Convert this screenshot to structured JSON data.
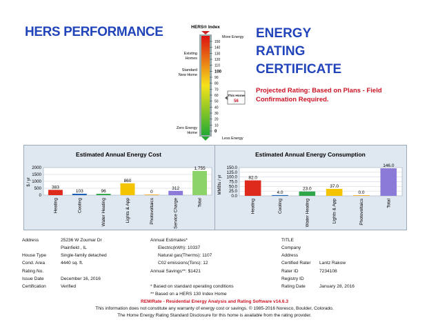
{
  "header": {
    "hers_performance": "HERS PERFORMANCE",
    "cert_line1": "ENERGY",
    "cert_line2": "RATING",
    "cert_line3": "CERTIFICATE",
    "projected": "Projected Rating: Based on Plans - Field Confirmation Required."
  },
  "index": {
    "title": "HERS® Index",
    "more_energy": "More Energy",
    "less_energy": "Less Energy",
    "existing_line1": "Existing",
    "existing_line2": "Homes",
    "standard_line1": "Standard",
    "standard_line2": "New Home",
    "zero_line1": "Zero Energy",
    "zero_line2": "Home",
    "this_home_label": "This Home",
    "this_home_value": "56",
    "ticks": [
      "150",
      "140",
      "130",
      "120",
      "110",
      "100",
      "90",
      "80",
      "70",
      "60",
      "50",
      "40",
      "30",
      "20",
      "10",
      "0"
    ],
    "colors": {
      "high": "#dd1111",
      "mid": "#f5e21a",
      "low": "#22aa33"
    }
  },
  "chart_data": [
    {
      "type": "bar",
      "title": "Estimated Annual Energy Cost",
      "ylabel": "$ / yr",
      "ylim": [
        0,
        2000
      ],
      "yticks": [
        "0",
        "500",
        "1000",
        "1500",
        "2000"
      ],
      "categories": [
        "Heating",
        "Cooling",
        "Water Heating",
        "Lights & App",
        "Photovoltaics",
        "Service Charge",
        "Total"
      ],
      "values": [
        383,
        103,
        96,
        860,
        0,
        312,
        1755
      ],
      "labels": [
        "383",
        "103",
        "96",
        "860",
        "0",
        "312",
        "1,755"
      ],
      "colors": [
        "#dd2a1a",
        "#1a5fb4",
        "#2fa64a",
        "#f5c400",
        "#f0a000",
        "#8c7ad8",
        "#8cd36a"
      ]
    },
    {
      "type": "bar",
      "title": "Estimated Annual Energy Consumption",
      "ylabel": "MMBtu / yr",
      "ylim": [
        0,
        150
      ],
      "yticks": [
        "0.0",
        "25.0",
        "50.0",
        "75.0",
        "100.0",
        "125.0",
        "150.0"
      ],
      "categories": [
        "Heating",
        "Cooling",
        "Water Heating",
        "Lights & App",
        "Photovoltaics",
        "Total"
      ],
      "values": [
        82.0,
        4.0,
        23.0,
        37.0,
        0.0,
        146.0
      ],
      "labels": [
        "82.0",
        "4.0",
        "23.0",
        "37.0",
        "0.0",
        "146.0"
      ],
      "colors": [
        "#dd2a1a",
        "#1a5fb4",
        "#2fa64a",
        "#f5c400",
        "#f0a000",
        "#8c7ad8"
      ]
    }
  ],
  "info": {
    "address_label": "Address",
    "address_line1": "25236 W Zoumar Dr",
    "address_line2": "Plainfield , IL",
    "house_type_label": "House Type",
    "house_type": "Single-family detached",
    "cond_area_label": "Cond. Area",
    "cond_area": "4440 sq. ft.",
    "rating_no_label": "Rating No.",
    "issue_date_label": "Issue Date",
    "issue_date": "December 16, 2016",
    "certification_label": "Certification",
    "certification": "Verified",
    "annual_estimates_label": "Annual Estimates*",
    "electric": "Electric(kWh):  10337",
    "gas": "Natural gas(Therms):  1107",
    "co2": "C02 emissions(Tons):  12",
    "savings": "Annual Savings**:  $1421",
    "note1": "* Based on standard operating conditions",
    "note2": "** Based on a HERS 130 Index Home",
    "title_label": "TITLE",
    "company_label": "Company",
    "address2_label": "Address",
    "rater_label": "Certified Rater",
    "rater": "Lantz Rakow",
    "rater_id_label": "Rater ID",
    "rater_id": "7234108",
    "registry_label": "Registry ID",
    "rating_date_label": "Rating Date",
    "rating_date": "January 28, 2016"
  },
  "footer": {
    "line1": "REM/Rate - Residential Energy Analysis and Rating Software v14.6.3",
    "line2": "This information does not constitute any warranty of energy cost or savings. © 1985-2016 Noresco, Boulder, Colorado.",
    "line3": "The Home Energy Rating Standard Disclosure for this home is available from the rating provider."
  }
}
